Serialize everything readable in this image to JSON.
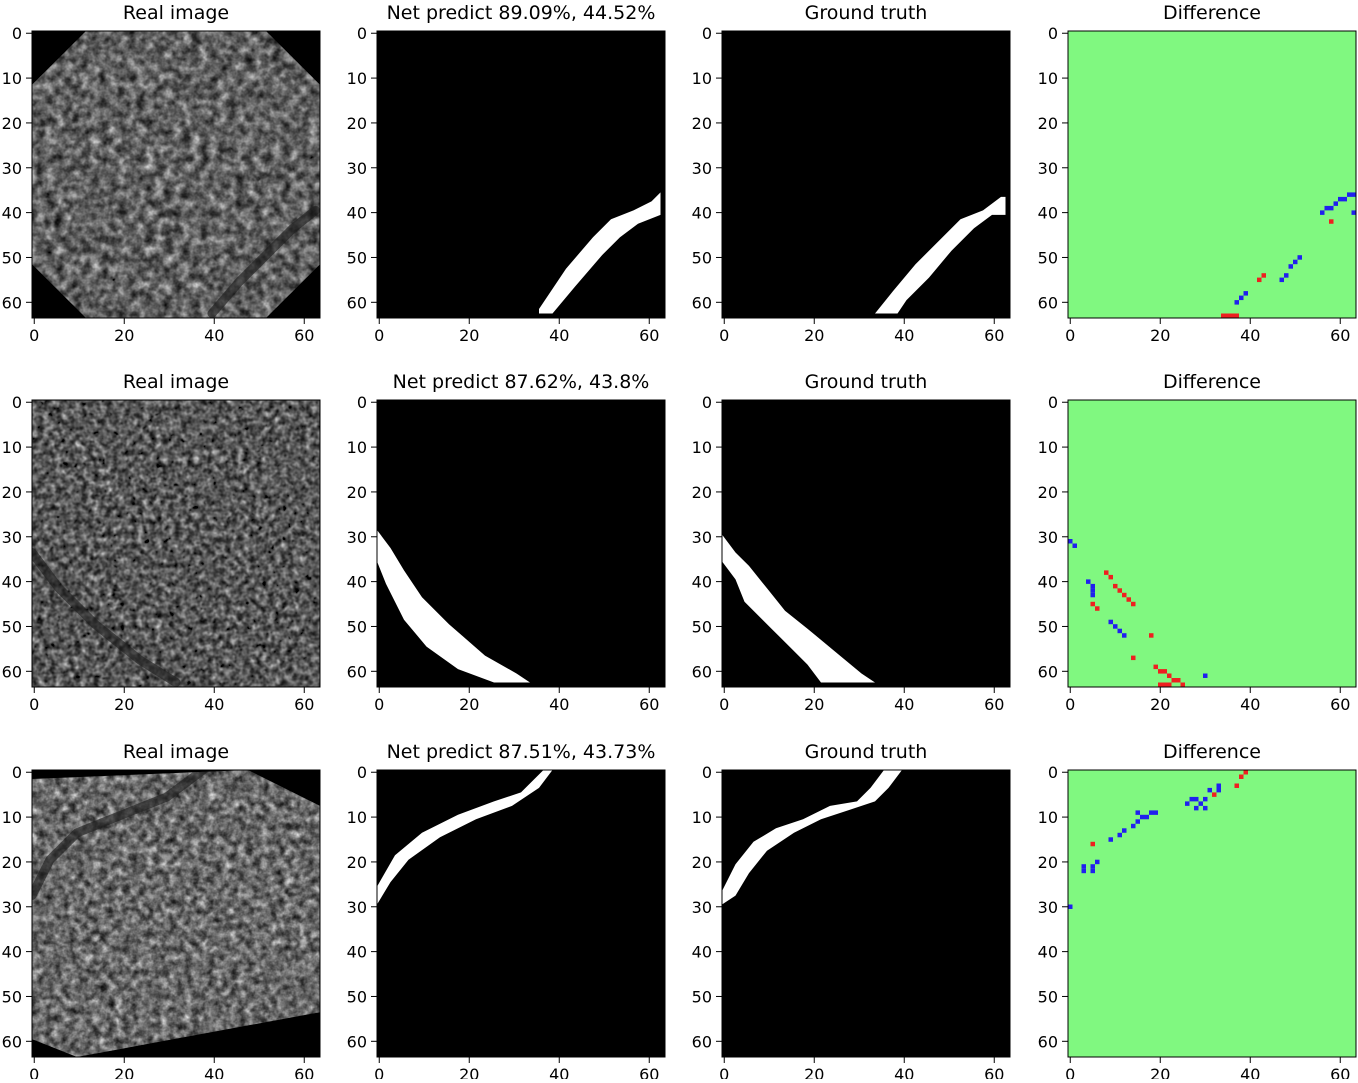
{
  "figure": {
    "rows": [
      {
        "panels": [
          {
            "title": "Real image",
            "kind": "real"
          },
          {
            "title": "Net predict 89.09%, 44.52%",
            "kind": "mask"
          },
          {
            "title": "Ground truth",
            "kind": "mask"
          },
          {
            "title": "Difference",
            "kind": "diff"
          }
        ]
      },
      {
        "panels": [
          {
            "title": "Real image",
            "kind": "real"
          },
          {
            "title": "Net predict 87.62%, 43.8%",
            "kind": "mask"
          },
          {
            "title": "Ground truth",
            "kind": "mask"
          },
          {
            "title": "Difference",
            "kind": "diff"
          }
        ]
      },
      {
        "panels": [
          {
            "title": "Real image",
            "kind": "real"
          },
          {
            "title": "Net predict 87.51%, 43.73%",
            "kind": "mask"
          },
          {
            "title": "Ground truth",
            "kind": "mask"
          },
          {
            "title": "Difference",
            "kind": "diff"
          }
        ]
      }
    ],
    "x_ticks": [
      "0",
      "20",
      "40",
      "60"
    ],
    "y_ticks": [
      "0",
      "10",
      "20",
      "30",
      "40",
      "50",
      "60"
    ],
    "colors": {
      "diff_background": "#80f880",
      "false_positive": "#ee2020",
      "false_negative": "#2020ee",
      "mask_background": "#000000",
      "mask_foreground": "#ffffff"
    }
  }
}
